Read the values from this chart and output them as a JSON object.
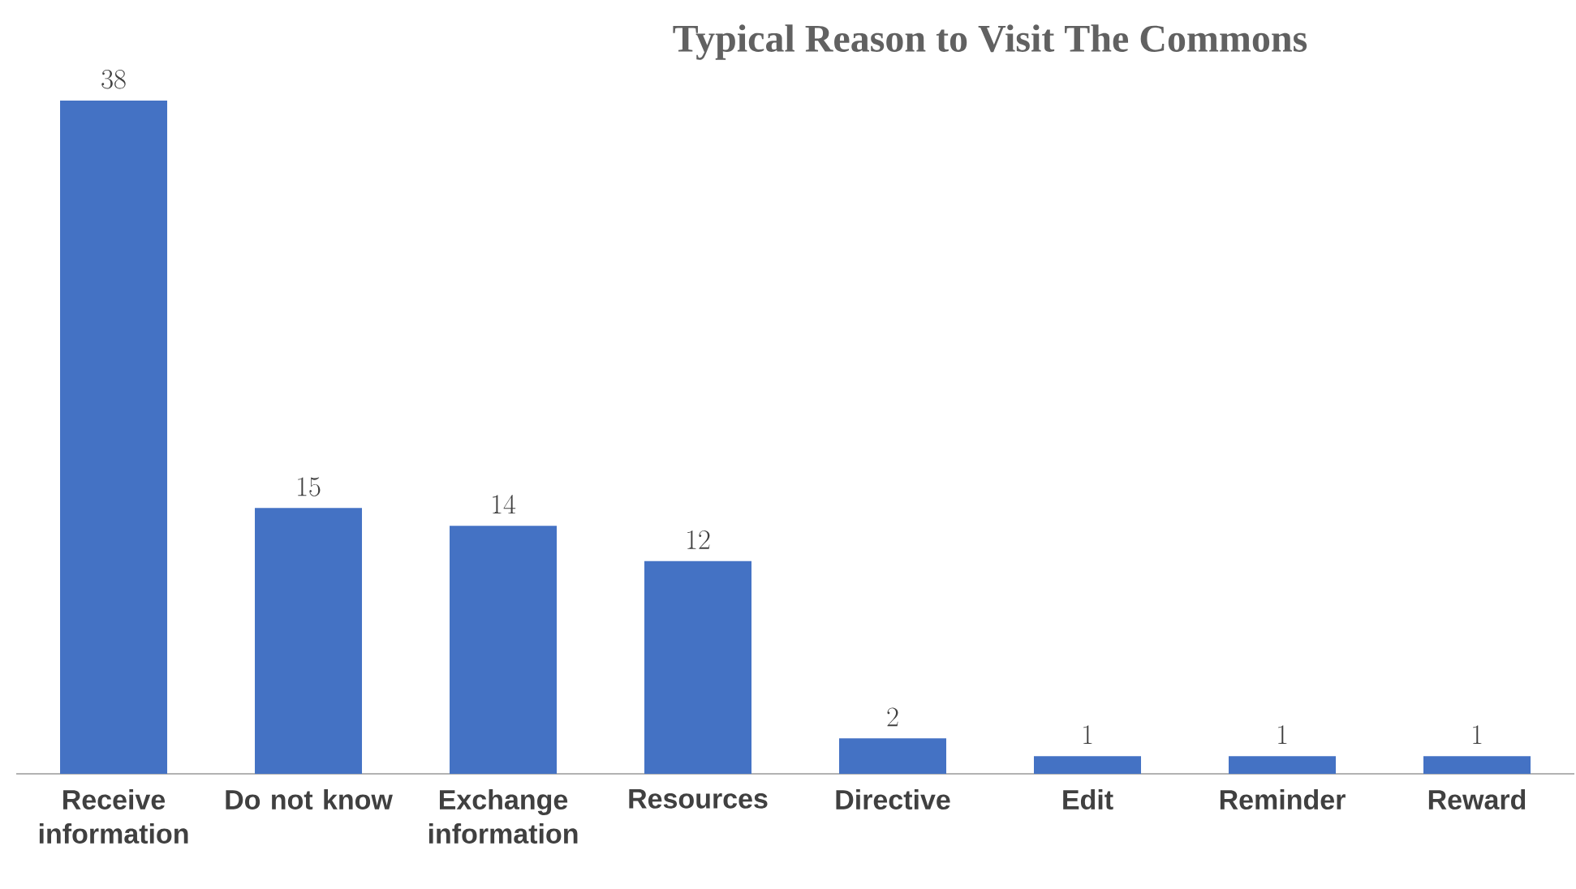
{
  "chart_data": {
    "type": "bar",
    "title": "Typical Reason to Visit The Commons",
    "categories": [
      "Receive information",
      "Do not know",
      "Exchange information",
      "Resources",
      "Directive",
      "Edit",
      "Reminder",
      "Reward"
    ],
    "values": [
      38,
      15,
      14,
      12,
      2,
      1,
      1,
      1
    ],
    "color": "#4472c4",
    "data_labels": true
  }
}
